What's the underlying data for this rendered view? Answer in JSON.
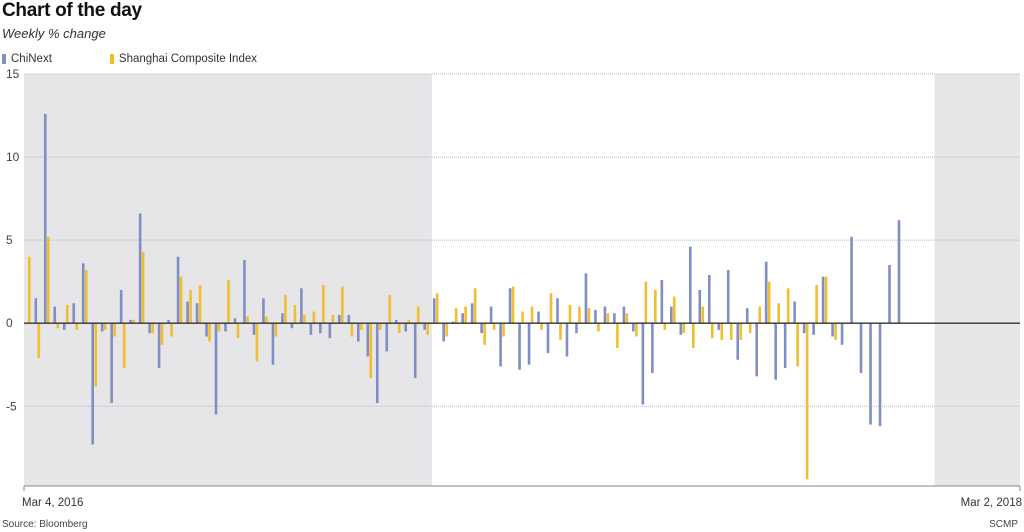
{
  "header": {
    "title": "Chart of the day",
    "subtitle": "Weekly % change"
  },
  "footer": {
    "source": "Source: Bloomberg",
    "credit": "SCMP"
  },
  "colors": {
    "chinext": "#7f8fc4",
    "shanghai": "#f2bd2e",
    "shade": "#e6e6e9",
    "grid": "#b8b8b8",
    "zero": "#333333"
  },
  "chart_data": {
    "type": "bar",
    "ylim": [
      -9.8,
      15
    ],
    "yticks": [
      15,
      10,
      5,
      0,
      -5
    ],
    "ytick_labels": [
      "15",
      "10",
      "5",
      "0",
      "-5"
    ],
    "x_start_label": "Mar 4, 2016",
    "x_end_label": "Mar 2, 2018",
    "grid": true,
    "legend_placement": "top-left",
    "shaded_ranges_week_index": [
      [
        0,
        43
      ],
      [
        96,
        105
      ]
    ],
    "series": [
      {
        "name": "ChiNext",
        "values": [
          1.5,
          12.6,
          1.0,
          -0.4,
          1.2,
          3.6,
          -7.3,
          -0.5,
          -4.8,
          2.0,
          0.2,
          6.6,
          -0.6,
          -2.7,
          0.2,
          4.0,
          1.3,
          1.2,
          -0.8,
          -5.5,
          -0.5,
          0.3,
          3.8,
          -0.7,
          1.5,
          -2.5,
          0.6,
          -0.3,
          2.1,
          -0.7,
          -0.6,
          -0.9,
          0.5,
          0.5,
          -1.1,
          -2.0,
          -4.8,
          -1.7,
          0.2,
          -0.5,
          -3.3,
          -0.4,
          1.5,
          -1.1,
          0.1,
          0.6,
          1.2,
          -0.6,
          1.0,
          -2.6,
          2.1,
          -2.8,
          -2.5,
          0.7,
          -1.8,
          1.5,
          -2.0,
          -0.6,
          3.0,
          0.8,
          1.0,
          0.6,
          1.0,
          -0.5,
          -4.9,
          -3.0,
          2.6,
          1.0,
          -0.7,
          4.6,
          2.0,
          2.9,
          -0.4,
          3.2,
          -2.2,
          0.9,
          -3.2,
          3.7,
          -3.4,
          -2.7,
          1.3,
          -0.6,
          -0.7,
          2.8,
          -0.8,
          -1.3,
          5.2,
          -3.0,
          -6.1,
          -6.2,
          3.5,
          6.2
        ],
        "note_indexed_from_week": 1
      },
      {
        "name": "Shanghai Composite Index",
        "values": [
          4.0,
          -2.1,
          5.2,
          -0.3,
          1.1,
          -0.4,
          3.2,
          -3.8,
          -0.4,
          -0.8,
          -2.7,
          0.2,
          4.3,
          -0.6,
          -1.3,
          -0.8,
          2.8,
          2.0,
          2.3,
          -1.1,
          -0.5,
          2.6,
          -0.9,
          0.4,
          -2.3,
          0.4,
          -0.8,
          1.7,
          1.1,
          0.5,
          0.7,
          2.3,
          0.5,
          2.2,
          -0.8,
          -0.4,
          -3.3,
          -0.4,
          1.7,
          -0.6,
          0.2,
          1.0,
          -0.7,
          1.8,
          -0.8,
          0.9,
          1.0,
          2.1,
          -1.3,
          -0.4,
          -0.8,
          2.2,
          0.7,
          1.0,
          -0.4,
          1.8,
          -1.0,
          1.1,
          1.0,
          0.9,
          -0.5,
          0.6,
          -1.5,
          0.6,
          -0.8,
          2.5,
          2.0,
          -0.4,
          1.6,
          -0.6,
          -1.5,
          1.0,
          -0.9,
          -1.0,
          -1.0,
          -1.0,
          -0.6,
          1.0,
          2.5,
          1.2,
          2.1,
          -2.6,
          -9.4,
          2.3,
          2.8,
          -1.0
        ]
      }
    ]
  }
}
